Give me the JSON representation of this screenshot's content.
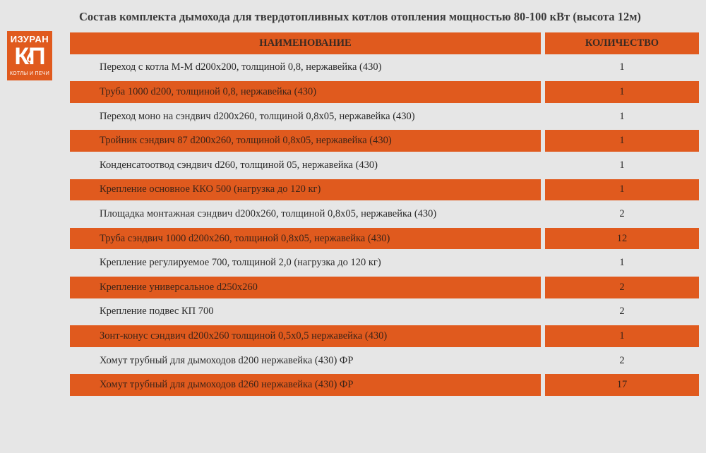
{
  "title": "Состав комплекта дымохода для твердотопливных котлов отопления мощностью 80-100 кВт (высота 12м)",
  "logo": {
    "brand": "ИЗУРАН",
    "mark": "КП",
    "subtitle": "КОТЛЫ И ПЕЧИ"
  },
  "colors": {
    "accent": "#e05a1e",
    "background": "#e6e6e6"
  },
  "table": {
    "headers": {
      "name": "НАИМЕНОВАНИЕ",
      "qty": "КОЛИЧЕСТВО"
    },
    "rows": [
      {
        "name": "Переход с котла М-М d200x200, толщиной 0,8, нержавейка (430)",
        "qty": "1"
      },
      {
        "name": "Труба 1000 d200, толщиной 0,8, нержавейка (430)",
        "qty": "1"
      },
      {
        "name": "Переход моно на сэндвич d200x260, толщиной 0,8x05, нержавейка (430)",
        "qty": "1"
      },
      {
        "name": "Тройник сэндвич 87 d200x260, толщиной 0,8x05, нержавейка (430)",
        "qty": "1"
      },
      {
        "name": "Конденсатоотвод сэндвич d260, толщиной 05, нержавейка (430)",
        "qty": "1"
      },
      {
        "name": "Крепление основное ККО 500 (нагрузка до 120 кг)",
        "qty": "1"
      },
      {
        "name": "Площадка монтажная сэндвич d200x260, толщиной 0,8x05, нержавейка (430)",
        "qty": "2"
      },
      {
        "name": "Труба сэндвич 1000 d200x260, толщиной 0,8x05, нержавейка (430)",
        "qty": "12"
      },
      {
        "name": "Крепление регулируемое 700, толщиной 2,0 (нагрузка до 120 кг)",
        "qty": "1"
      },
      {
        "name": "Крепление универсальное d250x260",
        "qty": "2"
      },
      {
        "name": "Крепление подвес КП 700",
        "qty": "2"
      },
      {
        "name": "Зонт-конус сэндвич d200x260 толщиной 0,5x0,5 нержавейка (430)",
        "qty": "1"
      },
      {
        "name": "Хомут трубный для дымоходов d200 нержавейка (430) ФР",
        "qty": "2"
      },
      {
        "name": "Хомут трубный для дымоходов d260  нержавейка (430) ФР",
        "qty": "17"
      }
    ]
  }
}
